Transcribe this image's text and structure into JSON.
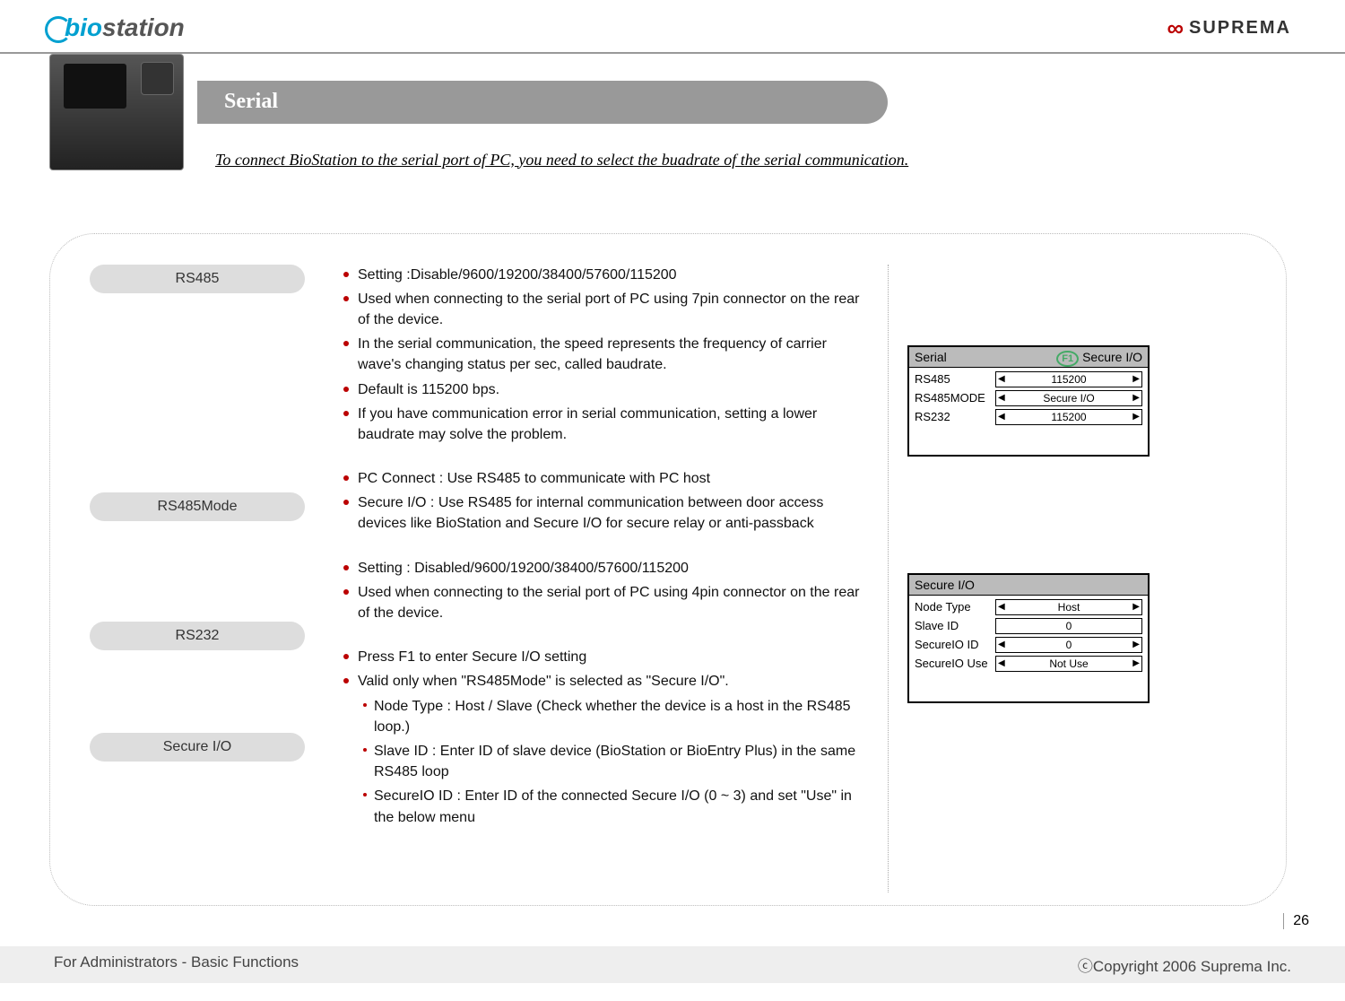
{
  "header": {
    "logo_left": "biostation",
    "logo_right": "SUPREMA"
  },
  "title": "Serial",
  "subtitle": "To connect BioStation  to the serial port of PC, you need to select the buadrate of the serial communication.",
  "sections": {
    "rs485": {
      "label": "RS485",
      "items": [
        "Setting :Disable/9600/19200/38400/57600/115200",
        "Used when connecting to the serial port of PC using 7pin connector on the rear of the device.",
        "In the serial communication, the speed represents the frequency of carrier wave's changing status per sec, called baudrate.",
        "Default is 115200 bps.",
        "If you have communication error in serial communication, setting a lower baudrate may solve the problem."
      ]
    },
    "rs485mode": {
      "label": "RS485Mode",
      "items": [
        "PC Connect : Use RS485 to communicate with PC host",
        "Secure I/O : Use RS485 for internal communication between door access devices like BioStation and Secure I/O for secure relay or anti-passback"
      ]
    },
    "rs232": {
      "label": "RS232",
      "items": [
        "Setting : Disabled/9600/19200/38400/57600/115200",
        "Used when connecting to the serial port of PC using 4pin connector on the rear of the device."
      ]
    },
    "secureio": {
      "label": "Secure I/O",
      "items": [
        "Press F1 to enter Secure I/O setting",
        "Valid only when \"RS485Mode\" is selected as \"Secure I/O\"."
      ],
      "sub": [
        "Node Type : Host / Slave (Check whether the device is a host in the RS485 loop.)",
        "Slave ID : Enter ID of slave device (BioStation or BioEntry Plus) in the same RS485 loop",
        "SecureIO ID : Enter ID of the connected Secure I/O (0 ~ 3) and set \"Use\" in the below menu"
      ]
    }
  },
  "lcd1": {
    "title": "Serial",
    "f1": "F1",
    "badge": "Secure I/O",
    "rows": [
      {
        "label": "RS485",
        "value": "115200",
        "arrows": true
      },
      {
        "label": "RS485MODE",
        "value": "Secure I/O",
        "arrows": true
      },
      {
        "label": "RS232",
        "value": "115200",
        "arrows": true
      }
    ]
  },
  "lcd2": {
    "title": "Secure I/O",
    "rows": [
      {
        "label": "Node Type",
        "value": "Host",
        "arrows": true
      },
      {
        "label": "Slave ID",
        "value": "0",
        "arrows": false
      },
      {
        "label": "SecureIO ID",
        "value": "0",
        "arrows": true
      },
      {
        "label": "SecureIO Use",
        "value": "Not Use",
        "arrows": true
      }
    ]
  },
  "page_number": "26",
  "footer": {
    "left": "For Administrators - Basic Functions",
    "right": "ⓒCopyright 2006 Suprema Inc."
  },
  "colors": {
    "accent": "#b00020",
    "pill_bg": "#dddddd",
    "title_bg": "#999999",
    "lcd_head": "#bbbbbb"
  }
}
